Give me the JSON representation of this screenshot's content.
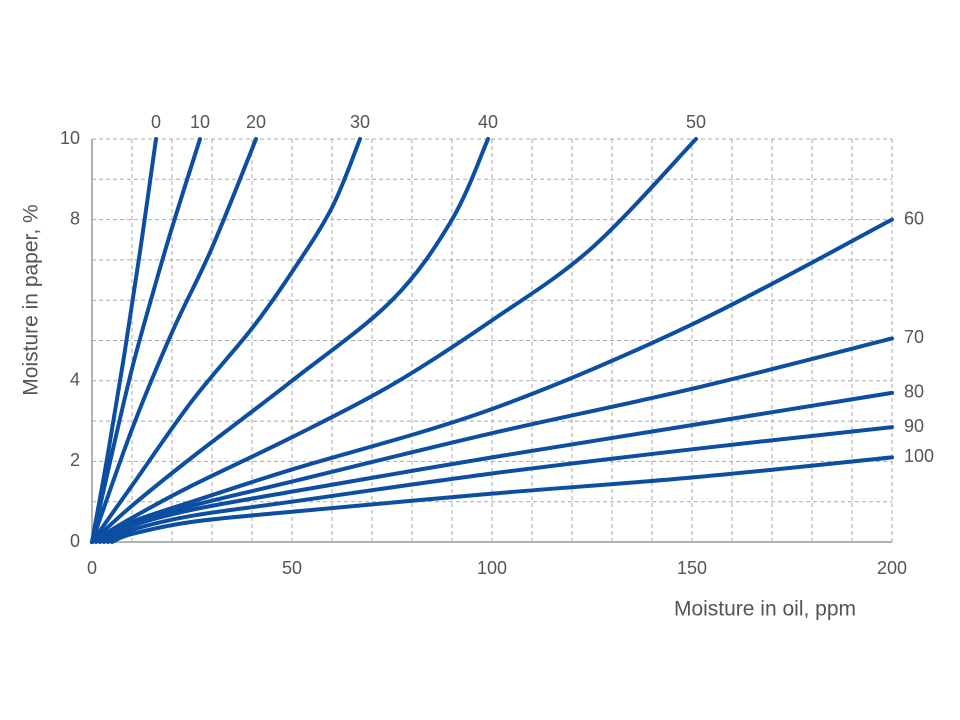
{
  "chart_data": {
    "type": "line",
    "x_label": "Moisture in oil, ppm",
    "y_label": "Moisture in paper, %",
    "xlim": [
      0,
      200
    ],
    "ylim": [
      0,
      10
    ],
    "xticks": [
      0,
      50,
      100,
      150,
      200
    ],
    "yticks": [
      0,
      2,
      4,
      8,
      10
    ],
    "minor_xticks": [
      10,
      20,
      30,
      40,
      60,
      70,
      80,
      90,
      110,
      120,
      130,
      140,
      160,
      170,
      180,
      190
    ],
    "minor_yticks": [
      1,
      3,
      5,
      6,
      7,
      9
    ],
    "grid": true,
    "series": [
      {
        "name": "0",
        "color": "#0b4ea2",
        "x": [
          0,
          4,
          8,
          12,
          16
        ],
        "values": [
          0,
          2.2,
          4.6,
          7.2,
          10
        ]
      },
      {
        "name": "10",
        "color": "#0b4ea2",
        "x": [
          0,
          5,
          10,
          15,
          20,
          27
        ],
        "values": [
          0,
          2.2,
          4.3,
          6.1,
          7.8,
          10
        ]
      },
      {
        "name": "20",
        "color": "#0b4ea2",
        "x": [
          0,
          10,
          20,
          30,
          41
        ],
        "values": [
          0,
          2.8,
          5.2,
          7.3,
          10
        ]
      },
      {
        "name": "30",
        "color": "#0b4ea2",
        "x": [
          0,
          10,
          25,
          40,
          50,
          60,
          67
        ],
        "values": [
          0,
          1.4,
          3.5,
          5.3,
          6.7,
          8.3,
          10
        ]
      },
      {
        "name": "40",
        "color": "#0b4ea2",
        "x": [
          0,
          10,
          25,
          50,
          75,
          90,
          99
        ],
        "values": [
          0,
          0.9,
          2.1,
          4.0,
          6.0,
          8.0,
          10
        ]
      },
      {
        "name": "50",
        "color": "#0b4ea2",
        "x": [
          0,
          10,
          25,
          50,
          75,
          100,
          125,
          151
        ],
        "values": [
          0,
          0.6,
          1.4,
          2.6,
          3.9,
          5.5,
          7.3,
          10
        ]
      },
      {
        "name": "60",
        "color": "#0b4ea2",
        "x": [
          1,
          10,
          25,
          50,
          100,
          150,
          200
        ],
        "values": [
          0,
          0.5,
          1.0,
          1.8,
          3.3,
          5.4,
          8
        ]
      },
      {
        "name": "70",
        "color": "#0b4ea2",
        "x": [
          2,
          10,
          25,
          50,
          100,
          150,
          200
        ],
        "values": [
          0,
          0.45,
          0.9,
          1.5,
          2.7,
          3.8,
          5.05
        ]
      },
      {
        "name": "80",
        "color": "#0b4ea2",
        "x": [
          3,
          10,
          25,
          50,
          100,
          150,
          200
        ],
        "values": [
          0,
          0.4,
          0.8,
          1.25,
          2.1,
          2.9,
          3.7
        ]
      },
      {
        "name": "90",
        "color": "#0b4ea2",
        "x": [
          4,
          10,
          25,
          50,
          100,
          150,
          200
        ],
        "values": [
          0,
          0.3,
          0.65,
          1.0,
          1.7,
          2.3,
          2.85
        ]
      },
      {
        "name": "100",
        "color": "#0b4ea2",
        "x": [
          5,
          10,
          25,
          50,
          100,
          150,
          200
        ],
        "values": [
          0,
          0.2,
          0.5,
          0.75,
          1.2,
          1.6,
          2.1
        ]
      }
    ]
  }
}
